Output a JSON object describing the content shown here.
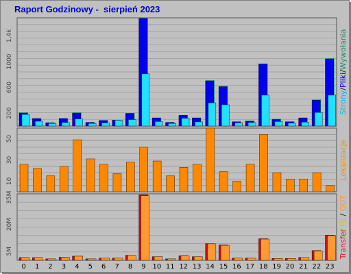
{
  "header": {
    "title": "Raport Godzinowy -  sierpień 2023"
  },
  "chart_data": [
    {
      "type": "bar",
      "panel": "hits",
      "categories": [
        "0",
        "1",
        "2",
        "3",
        "4",
        "5",
        "6",
        "7",
        "8",
        "9",
        "10",
        "11",
        "12",
        "13",
        "14",
        "15",
        "16",
        "17",
        "18",
        "19",
        "20",
        "21",
        "22",
        "23"
      ],
      "ylim": [
        0,
        1680
      ],
      "yticks": [
        200,
        600,
        1000,
        1400
      ],
      "ytick_labels": [
        "200",
        "600",
        "1000",
        "1,4k"
      ],
      "legend": {
        "label_parts": [
          {
            "text": "Strony",
            "color": "#00bbee"
          },
          {
            "text": "/",
            "color": "#222222"
          },
          {
            "text": "Pliki",
            "color": "#0000ee"
          },
          {
            "text": "/",
            "color": "#222222"
          },
          {
            "text": "Wywołania",
            "color": "#1f8f6f"
          }
        ],
        "placement": "right"
      },
      "series": [
        {
          "name": "Wywołania",
          "color": "#00a060",
          "values": [
            210,
            120,
            55,
            120,
            210,
            60,
            90,
            95,
            200,
            1680,
            130,
            60,
            170,
            130,
            710,
            620,
            70,
            80,
            970,
            110,
            70,
            130,
            410,
            1050
          ]
        },
        {
          "name": "Pliki",
          "color": "#0000ee",
          "values": [
            200,
            115,
            50,
            115,
            200,
            55,
            85,
            90,
            195,
            1670,
            125,
            55,
            165,
            125,
            700,
            610,
            65,
            75,
            960,
            100,
            65,
            125,
            400,
            1040
          ]
        },
        {
          "name": "Strony",
          "color": "#22e0ff",
          "values": [
            180,
            75,
            40,
            55,
            110,
            40,
            50,
            90,
            100,
            810,
            70,
            40,
            120,
            65,
            360,
            330,
            50,
            55,
            480,
            70,
            45,
            60,
            210,
            480
          ]
        }
      ]
    },
    {
      "type": "bar",
      "panel": "visits",
      "categories": [
        "0",
        "1",
        "2",
        "3",
        "4",
        "5",
        "6",
        "7",
        "8",
        "9",
        "10",
        "11",
        "12",
        "13",
        "14",
        "15",
        "16",
        "17",
        "18",
        "19",
        "20",
        "21",
        "22",
        "23"
      ],
      "ylim": [
        0,
        60
      ],
      "yticks": [
        10,
        30,
        50
      ],
      "ytick_labels": [
        "10",
        "30",
        "50"
      ],
      "legend": {
        "label_parts": [
          {
            "text": "Lokalizacje",
            "color": "#ff8800"
          }
        ],
        "placement": "right"
      },
      "series": [
        {
          "name": "Lokalizacje",
          "color": "#ff8800",
          "values": [
            26,
            22,
            15,
            24,
            49,
            31,
            26,
            17,
            28,
            42,
            29,
            15,
            23,
            26,
            60,
            19,
            10,
            26,
            54,
            18,
            12,
            12,
            18,
            6
          ]
        }
      ]
    },
    {
      "type": "bar",
      "panel": "transfer",
      "categories": [
        "0",
        "1",
        "2",
        "3",
        "4",
        "5",
        "6",
        "7",
        "8",
        "9",
        "10",
        "11",
        "12",
        "13",
        "14",
        "15",
        "16",
        "17",
        "18",
        "19",
        "20",
        "21",
        "22",
        "23"
      ],
      "ylim": [
        0,
        37
      ],
      "yticks": [
        5,
        20,
        35
      ],
      "ytick_labels": [
        "5M",
        "20M",
        "35M"
      ],
      "legend": {
        "label_parts": [
          {
            "text": "Transfer",
            "color": "#dd2020"
          },
          {
            "text": " ",
            "color": "#222222"
          },
          {
            "text": "IN",
            "color": "#cccc00"
          },
          {
            "text": " / ",
            "color": "#222222"
          },
          {
            "text": "OUT",
            "color": "#ff9933"
          }
        ],
        "placement": "right"
      },
      "series": [
        {
          "name": "Transfer",
          "color": "#cc1111",
          "values": [
            1.5,
            1.5,
            0.8,
            1.7,
            2.3,
            0.8,
            1.2,
            1.2,
            2.8,
            36.5,
            2.0,
            0.8,
            2.5,
            2.0,
            9.3,
            8.5,
            1.2,
            1.2,
            12.0,
            1.0,
            1.0,
            1.6,
            5.4,
            14.0
          ]
        },
        {
          "name": "OUT",
          "color": "#ff9933",
          "values": [
            1.5,
            1.5,
            0.8,
            1.7,
            2.3,
            0.8,
            1.2,
            1.2,
            2.8,
            36.0,
            2.0,
            0.8,
            2.4,
            2.0,
            9.2,
            8.3,
            1.2,
            1.2,
            11.8,
            1.0,
            1.0,
            1.6,
            5.2,
            13.8
          ]
        }
      ]
    }
  ],
  "colors": {
    "panel_bg": "#c0c0c0",
    "title": "#0000cc",
    "grid": "#888888"
  }
}
